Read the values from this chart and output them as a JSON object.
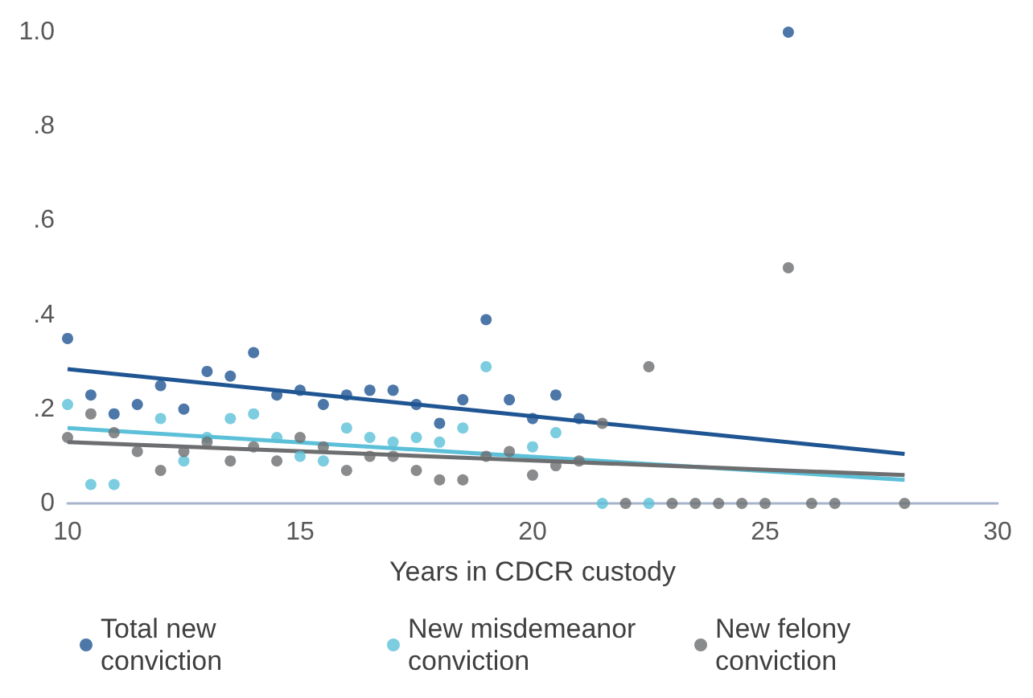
{
  "chart_data": {
    "type": "scatter",
    "xlabel": "Years in CDCR custody",
    "xlim": [
      10,
      30
    ],
    "xticks": [
      10,
      15,
      20,
      25,
      30
    ],
    "ylim": [
      0,
      1
    ],
    "yticks": [
      {
        "value": 0,
        "label": "0"
      },
      {
        "value": 0.2,
        "label": ".2"
      },
      {
        "value": 0.4,
        "label": ".4"
      },
      {
        "value": 0.6,
        "label": ".6"
      },
      {
        "value": 0.8,
        "label": ".8"
      },
      {
        "value": 1,
        "label": "1.0"
      }
    ],
    "grid": false,
    "legend": "bottom",
    "marker": "circle",
    "series": [
      {
        "name": "Total new conviction",
        "color": "#1f5592",
        "x": [
          10,
          10.5,
          11,
          11.5,
          12,
          12.5,
          13,
          13.5,
          14,
          14.5,
          15,
          15.5,
          16,
          16.5,
          17,
          17.5,
          18,
          18.5,
          19,
          19.5,
          20,
          20.5,
          21,
          25.5
        ],
        "values": [
          0.35,
          0.23,
          0.19,
          0.21,
          0.25,
          0.2,
          0.28,
          0.27,
          0.32,
          0.23,
          0.24,
          0.21,
          0.23,
          0.24,
          0.24,
          0.21,
          0.17,
          0.22,
          0.39,
          0.22,
          0.18,
          0.23,
          0.18,
          1.0
        ]
      },
      {
        "name": "New misdemeanor conviction",
        "color": "#5bc0d8",
        "x": [
          10,
          10.5,
          11,
          12,
          12.5,
          13,
          13.5,
          14,
          14.5,
          15,
          15.5,
          16,
          16.5,
          17,
          17.5,
          18,
          18.5,
          19,
          20,
          20.5,
          21.5,
          22.5
        ],
        "values": [
          0.21,
          0.04,
          0.04,
          0.18,
          0.09,
          0.14,
          0.18,
          0.19,
          0.14,
          0.1,
          0.09,
          0.16,
          0.14,
          0.13,
          0.14,
          0.13,
          0.16,
          0.29,
          0.12,
          0.15,
          0,
          0
        ]
      },
      {
        "name": "New felony conviction",
        "color": "#6d6e70",
        "x": [
          10,
          10.5,
          11,
          11.5,
          12,
          12.5,
          13,
          13.5,
          14,
          14.5,
          15,
          15.5,
          16,
          16.5,
          17,
          17.5,
          18,
          18.5,
          19,
          19.5,
          20,
          20.5,
          21,
          21.5,
          22,
          22.5,
          23,
          23.5,
          24,
          24.5,
          25,
          25.5,
          26,
          26.5,
          28
        ],
        "values": [
          0.14,
          0.19,
          0.15,
          0.11,
          0.07,
          0.11,
          0.13,
          0.09,
          0.12,
          0.09,
          0.14,
          0.12,
          0.07,
          0.1,
          0.1,
          0.07,
          0.05,
          0.05,
          0.1,
          0.11,
          0.06,
          0.08,
          0.09,
          0.17,
          0,
          0.29,
          0,
          0,
          0,
          0,
          0,
          0.5,
          0,
          0,
          0
        ]
      },
      {
        "type": "line",
        "marker": "none",
        "color": "#1f5592",
        "x": [
          10,
          28
        ],
        "values": [
          0.285,
          0.105
        ]
      },
      {
        "type": "line",
        "marker": "none",
        "color": "#5bc0d8",
        "x": [
          10,
          28
        ],
        "values": [
          0.16,
          0.05
        ]
      },
      {
        "type": "line",
        "marker": "none",
        "color": "#6d6e70",
        "x": [
          10,
          28
        ],
        "values": [
          0.13,
          0.06
        ]
      }
    ]
  }
}
